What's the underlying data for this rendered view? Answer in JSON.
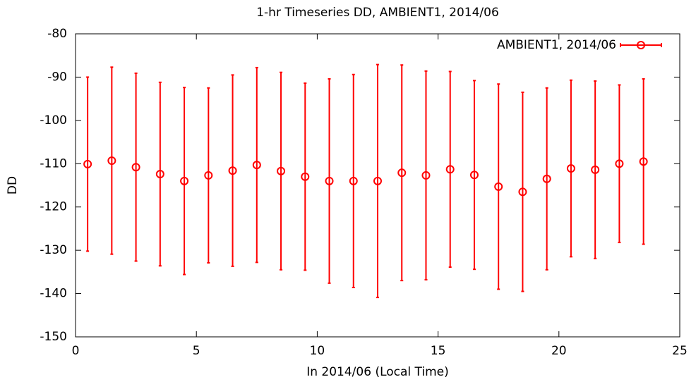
{
  "chart_data": {
    "type": "errorbar",
    "title": "1-hr Timeseries DD, AMBIENT1, 2014/06",
    "x_label": "In 2014/06 (Local Time)",
    "y_label": "DD",
    "xlim": [
      0,
      25
    ],
    "xticks": [
      0,
      5,
      10,
      15,
      20,
      25
    ],
    "ylim": [
      -150,
      -80
    ],
    "yticks": [
      -150,
      -140,
      -130,
      -120,
      -110,
      -100,
      -90,
      -80
    ],
    "legend": "top-right",
    "series": [
      {
        "name": "AMBIENT1, 2014/06",
        "color": "#ff0000",
        "x": [
          0.5,
          1.5,
          2.5,
          3.5,
          4.5,
          5.5,
          6.5,
          7.5,
          8.5,
          9.5,
          10.5,
          11.5,
          12.5,
          13.5,
          14.5,
          15.5,
          16.5,
          17.5,
          18.5,
          19.5,
          20.5,
          21.5,
          22.5,
          23.5
        ],
        "values": [
          -110.1,
          -109.3,
          -110.8,
          -112.4,
          -114.0,
          -112.7,
          -111.6,
          -110.3,
          -111.7,
          -113.0,
          -114.0,
          -114.0,
          -114.0,
          -112.1,
          -112.7,
          -111.3,
          -112.6,
          -115.3,
          -116.5,
          -113.5,
          -111.1,
          -111.4,
          -110.0,
          -109.5
        ],
        "errors": [
          20.1,
          21.6,
          21.7,
          21.2,
          21.6,
          20.2,
          22.1,
          22.5,
          22.8,
          21.6,
          23.6,
          24.6,
          26.9,
          24.9,
          24.1,
          22.6,
          21.8,
          23.7,
          23.0,
          21.0,
          20.4,
          20.5,
          18.2,
          19.1
        ]
      }
    ]
  }
}
